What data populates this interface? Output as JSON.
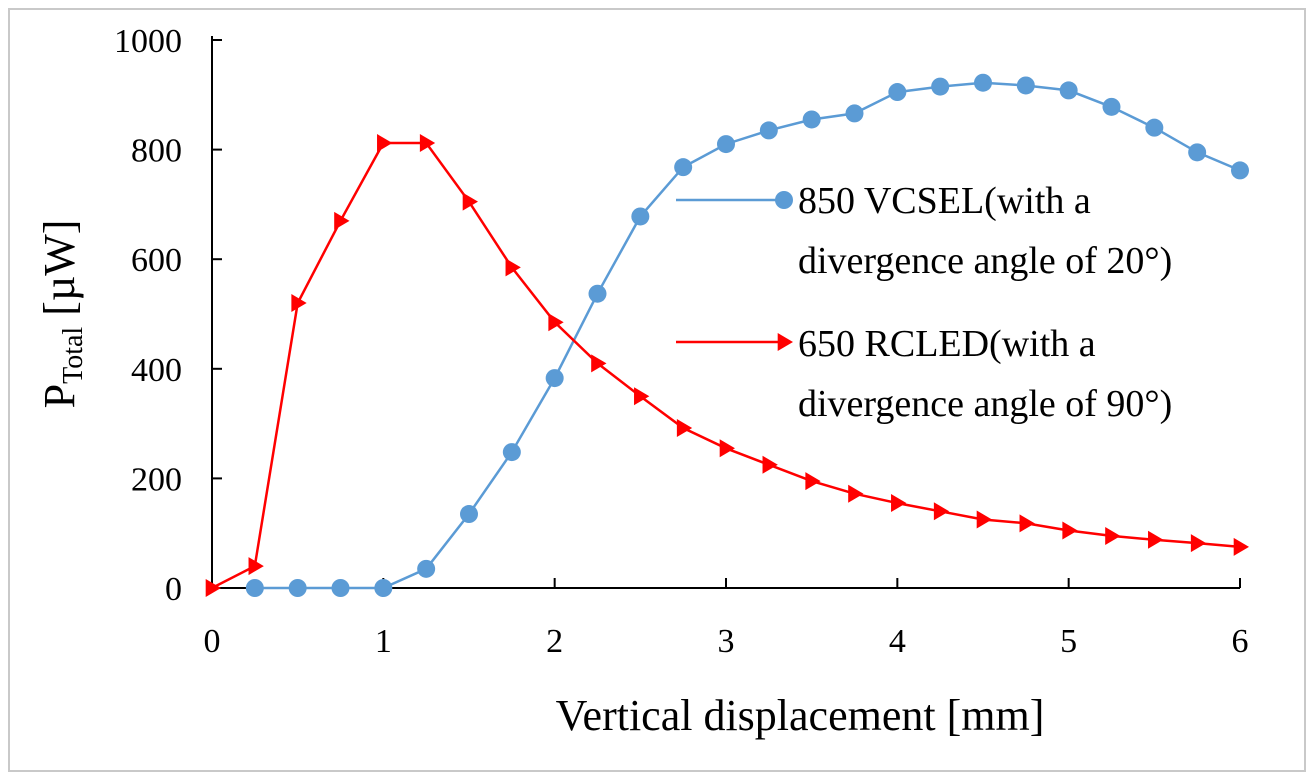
{
  "chart_data": {
    "type": "line",
    "title": "",
    "xlabel": "Vertical displacement [mm]",
    "ylabel_main": "P",
    "ylabel_sub": "Total",
    "ylabel_unit": " [µW]",
    "xlim": [
      0,
      6
    ],
    "ylim": [
      0,
      1000
    ],
    "xticks": [
      "0",
      "1",
      "2",
      "3",
      "4",
      "5",
      "6"
    ],
    "yticks": [
      "0",
      "200",
      "400",
      "600",
      "800",
      "1000"
    ],
    "grid": false,
    "legend_position": "right",
    "series": [
      {
        "name": "850 VCSEL",
        "legend_line1": "850 VCSEL(with a",
        "legend_line2": "divergence angle of 20°)",
        "color": "#5b9bd5",
        "marker": "circle",
        "x": [
          0.25,
          0.5,
          0.75,
          1.0,
          1.25,
          1.5,
          1.75,
          2.0,
          2.25,
          2.5,
          2.75,
          3.0,
          3.25,
          3.5,
          3.75,
          4.0,
          4.25,
          4.5,
          4.75,
          5.0,
          5.25,
          5.5,
          5.75,
          6.0
        ],
        "y": [
          0,
          0,
          0,
          0,
          35,
          135,
          248,
          383,
          537,
          678,
          768,
          810,
          835,
          855,
          866,
          905,
          915,
          922,
          917,
          908,
          878,
          840,
          795,
          762
        ]
      },
      {
        "name": "650 RCLED",
        "legend_line1": "650 RCLED(with a",
        "legend_line2": "divergence angle of 90°)",
        "color": "#ff0000",
        "marker": "triangle-right",
        "x": [
          0.0,
          0.25,
          0.5,
          0.75,
          1.0,
          1.25,
          1.5,
          1.75,
          2.0,
          2.25,
          2.5,
          2.75,
          3.0,
          3.25,
          3.5,
          3.75,
          4.0,
          4.25,
          4.5,
          4.75,
          5.0,
          5.25,
          5.5,
          5.75,
          6.0
        ],
        "y": [
          0,
          40,
          520,
          670,
          812,
          812,
          705,
          585,
          485,
          410,
          350,
          292,
          255,
          225,
          195,
          172,
          155,
          140,
          125,
          118,
          105,
          95,
          88,
          82,
          75
        ]
      }
    ]
  }
}
